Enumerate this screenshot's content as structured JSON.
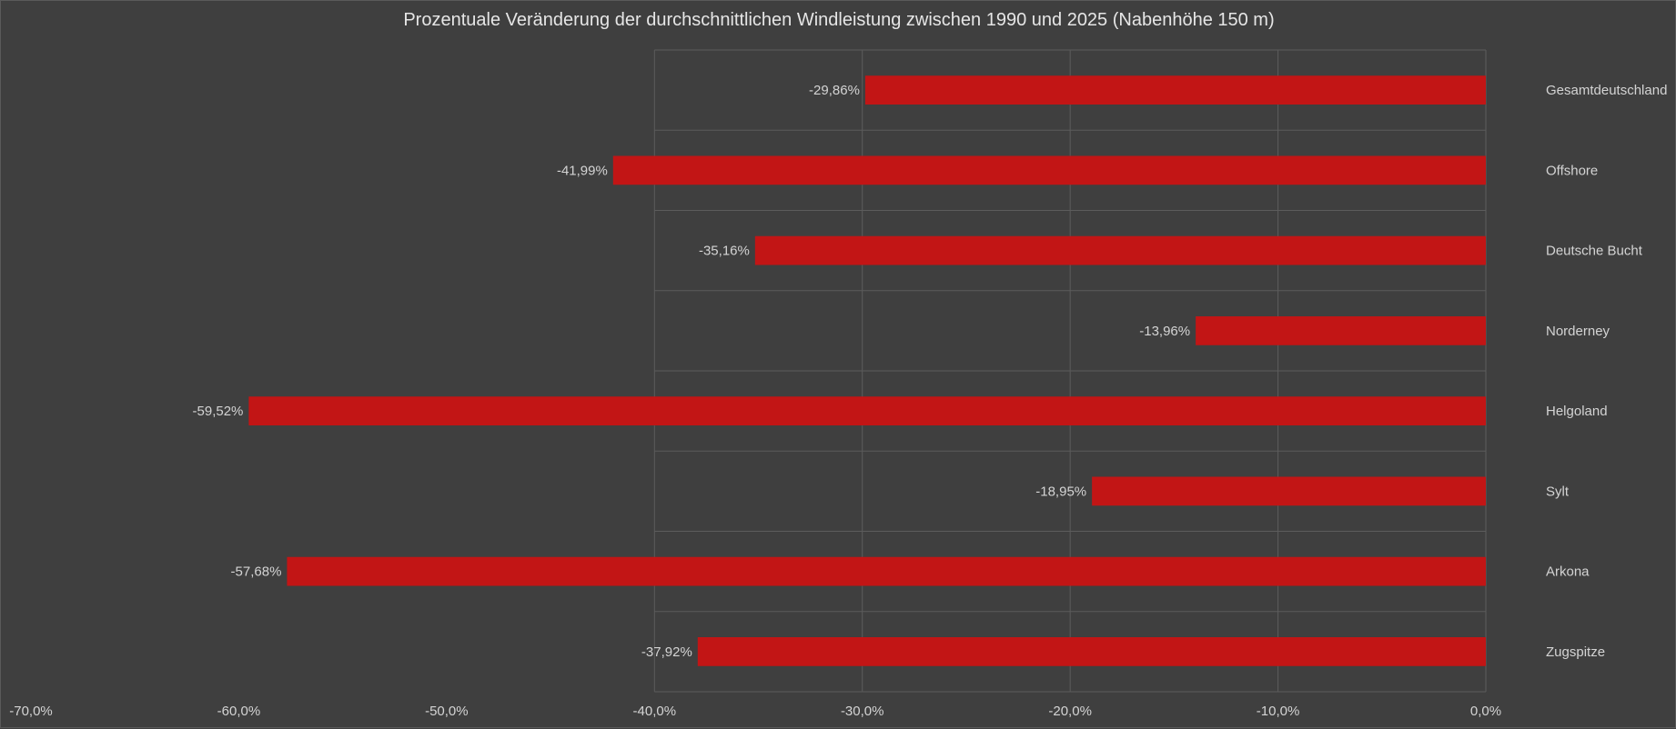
{
  "chart_data": {
    "type": "bar",
    "orientation": "horizontal",
    "title": "Prozentuale Veränderung der durchschnittlichen Windleistung zwischen 1990 und 2025 (Nabenhöhe 150 m)",
    "xlabel": "",
    "ylabel": "",
    "categories": [
      "Gesamtdeutschland",
      "Offshore",
      "Deutsche Bucht",
      "Norderney",
      "Helgoland",
      "Sylt",
      "Arkona",
      "Zugspitze"
    ],
    "values": [
      -29.86,
      -41.99,
      -35.16,
      -13.96,
      -59.52,
      -18.95,
      -57.68,
      -37.92
    ],
    "value_labels": [
      "-29,86%",
      "-41,99%",
      "-35,16%",
      "-13,96%",
      "-59,52%",
      "-18,95%",
      "-57,68%",
      "-37,92%"
    ],
    "xlim": [
      -70,
      0
    ],
    "x_ticks": [
      -70,
      -60,
      -50,
      -40,
      -30,
      -20,
      -10,
      0
    ],
    "x_tick_labels": [
      "-70,0%",
      "-60,0%",
      "-50,0%",
      "-40,0%",
      "-30,0%",
      "-20,0%",
      "-10,0%",
      "0,0%"
    ],
    "grid": true,
    "legend": false,
    "category_axis_side": "right",
    "colors": {
      "bar": "#c21515",
      "background": "#3f3f3f",
      "grid": "#5c5c5c",
      "text": "#d4d4d4"
    }
  }
}
